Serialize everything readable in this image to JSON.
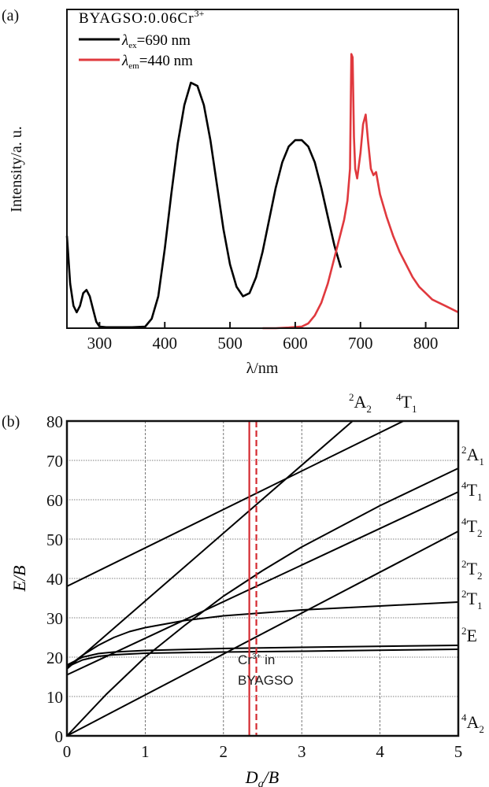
{
  "chart_data": [
    {
      "panel_label": "(a)",
      "type": "line",
      "xlabel": "λ/nm",
      "ylabel": "Intensity/a. u.",
      "xlim": [
        250,
        850
      ],
      "ylim": [
        0,
        1
      ],
      "xticks": [
        300,
        400,
        500,
        600,
        700,
        800
      ],
      "yticks": [],
      "grid": false,
      "legend": {
        "title": "BYAGSO:0.06Cr",
        "title_sup": "3+",
        "position": "top-left"
      },
      "series": [
        {
          "name": "λex=690 nm",
          "name_symbol": "λ",
          "name_sub": "ex",
          "name_rest": "=690 nm",
          "color": "#000000",
          "x": [
            250,
            255,
            260,
            265,
            270,
            275,
            280,
            285,
            290,
            295,
            300,
            310,
            330,
            350,
            370,
            380,
            390,
            400,
            410,
            420,
            430,
            440,
            450,
            460,
            470,
            480,
            490,
            500,
            510,
            520,
            530,
            540,
            550,
            560,
            570,
            580,
            590,
            600,
            610,
            620,
            630,
            640,
            650,
            660,
            670
          ],
          "y": [
            0.29,
            0.14,
            0.07,
            0.05,
            0.07,
            0.11,
            0.12,
            0.1,
            0.06,
            0.02,
            0.005,
            0.003,
            0.003,
            0.003,
            0.005,
            0.03,
            0.1,
            0.25,
            0.42,
            0.58,
            0.7,
            0.77,
            0.76,
            0.7,
            0.59,
            0.45,
            0.31,
            0.2,
            0.13,
            0.1,
            0.11,
            0.16,
            0.24,
            0.34,
            0.44,
            0.52,
            0.57,
            0.59,
            0.59,
            0.57,
            0.52,
            0.44,
            0.35,
            0.26,
            0.19
          ]
        },
        {
          "name": "λem=440 nm",
          "name_symbol": "λ",
          "name_sub": "em",
          "name_rest": "=440 nm",
          "color": "#e0393e",
          "x": [
            550,
            570,
            590,
            610,
            620,
            630,
            640,
            650,
            660,
            670,
            675,
            680,
            684,
            686,
            688,
            690,
            692,
            695,
            700,
            704,
            708,
            712,
            716,
            720,
            724,
            730,
            740,
            750,
            760,
            770,
            780,
            790,
            800,
            810,
            820,
            830,
            840,
            850
          ],
          "y": [
            0.0,
            0.0,
            0.002,
            0.005,
            0.015,
            0.04,
            0.08,
            0.14,
            0.22,
            0.3,
            0.34,
            0.4,
            0.5,
            0.86,
            0.85,
            0.6,
            0.5,
            0.47,
            0.55,
            0.64,
            0.67,
            0.58,
            0.5,
            0.48,
            0.49,
            0.42,
            0.35,
            0.29,
            0.24,
            0.2,
            0.16,
            0.13,
            0.11,
            0.09,
            0.08,
            0.07,
            0.06,
            0.05
          ]
        }
      ]
    },
    {
      "panel_label": "(b)",
      "type": "line",
      "xlabel": "Dq/B",
      "xlabel_main": "D",
      "xlabel_sub": "q",
      "xlabel_rest": "/B",
      "ylabel": "E/B",
      "xlim": [
        0,
        5
      ],
      "ylim": [
        0,
        80
      ],
      "xticks": [
        0,
        1,
        2,
        3,
        4,
        5
      ],
      "yticks": [
        0,
        10,
        20,
        30,
        40,
        50,
        60,
        70,
        80
      ],
      "grid": true,
      "series": [
        {
          "x": [
            0,
            5
          ],
          "y": [
            0,
            0
          ]
        },
        {
          "x": [
            0,
            0.2,
            0.4,
            0.6,
            1,
            2,
            3,
            5
          ],
          "y": [
            17.5,
            19.3,
            20.2,
            20.6,
            21,
            21.3,
            21.5,
            22
          ]
        },
        {
          "x": [
            0,
            0.2,
            0.4,
            0.6,
            1,
            2,
            3,
            5
          ],
          "y": [
            18,
            20,
            20.9,
            21.3,
            21.7,
            22.2,
            22.5,
            23
          ]
        },
        {
          "x": [
            0,
            0.2,
            0.4,
            0.6,
            0.8,
            1,
            1.5,
            2,
            3,
            4,
            5
          ],
          "y": [
            17.5,
            20.5,
            23,
            25,
            26.5,
            27.5,
            29.3,
            30.5,
            32,
            33,
            34
          ]
        },
        {
          "x": [
            0,
            5
          ],
          "y": [
            0,
            52
          ]
        },
        {
          "x": [
            0,
            5
          ],
          "y": [
            15.5,
            62
          ]
        },
        {
          "x": [
            0,
            0.5,
            1,
            1.5,
            2,
            2.5,
            3,
            4,
            5
          ],
          "y": [
            0,
            10.5,
            20,
            28,
            35.5,
            42,
            48,
            58.5,
            68
          ]
        },
        {
          "x": [
            0,
            3.65
          ],
          "y": [
            17,
            80
          ]
        },
        {
          "x": [
            0,
            4.3
          ],
          "y": [
            38,
            80
          ]
        }
      ],
      "markers": [
        {
          "x": 2.33,
          "style": "solid",
          "color": "#d42a30"
        },
        {
          "x": 2.42,
          "style": "dashed",
          "color": "#d42a30"
        }
      ],
      "annotation": {
        "line1": "Cr",
        "line1_sup": "3+",
        "line1_rest": " in",
        "line2": "BYAGSO"
      },
      "state_labels_right": [
        {
          "sup": "2",
          "base": "A",
          "sub": "1"
        },
        {
          "sup": "4",
          "base": "T",
          "sub": "1"
        },
        {
          "sup": "4",
          "base": "T",
          "sub": "2"
        },
        {
          "sup": "2",
          "base": "T",
          "sub": "2"
        },
        {
          "sup": "2",
          "base": "T",
          "sub": "1"
        },
        {
          "sup": "2",
          "base": "E",
          "sub": ""
        },
        {
          "sup": "4",
          "base": "A",
          "sub": "2"
        }
      ],
      "state_labels_top": [
        {
          "sup": "2",
          "base": "A",
          "sub": "2"
        },
        {
          "sup": "4",
          "base": "T",
          "sub": "1"
        }
      ]
    }
  ]
}
